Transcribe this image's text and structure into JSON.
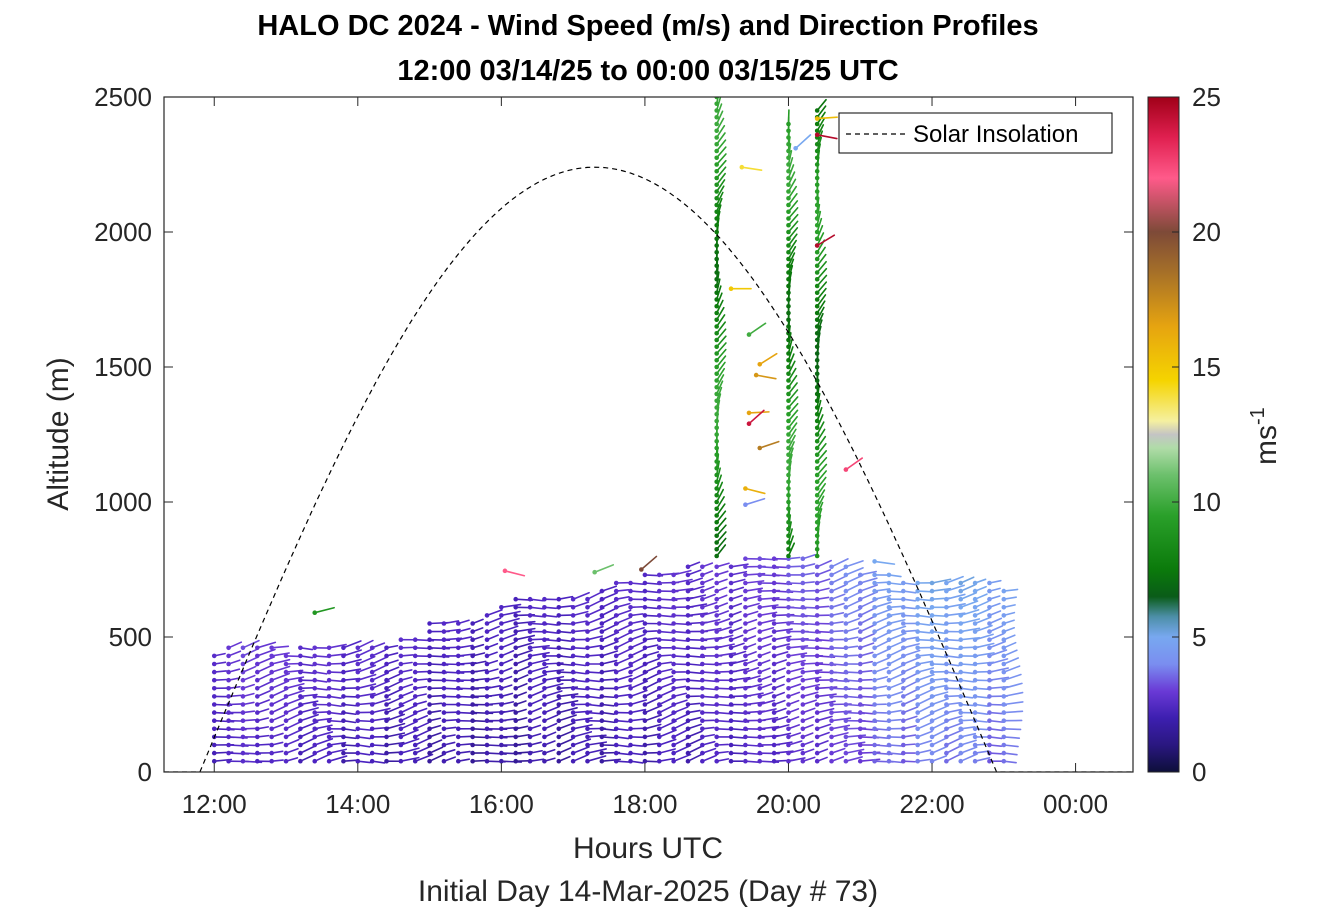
{
  "chart_data": {
    "type": "wind-barb-profile",
    "title": "HALO DC 2024 - Wind Speed (m/s) and Direction Profiles",
    "subtitle": "12:00 03/14/25 to 00:00 03/15/25  UTC",
    "xlabel": "Hours UTC",
    "xlabel2": "Initial Day 14-Mar-2025 (Day # 73)",
    "ylabel": "Altitude (m)",
    "xlim": [
      11.3,
      24.8
    ],
    "ylim": [
      0,
      2500
    ],
    "x_ticks": [
      12,
      14,
      16,
      18,
      20,
      22,
      24
    ],
    "x_tick_labels": [
      "12:00",
      "14:00",
      "16:00",
      "18:00",
      "20:00",
      "22:00",
      "00:00"
    ],
    "y_ticks": [
      0,
      500,
      1000,
      1500,
      2000,
      2500
    ],
    "y_tick_labels": [
      "0",
      "500",
      "1000",
      "1500",
      "2000",
      "2500"
    ],
    "colorbar": {
      "label": "ms",
      "label_exponent": "-1",
      "range": [
        0,
        25
      ],
      "ticks": [
        0,
        5,
        10,
        15,
        20,
        25
      ],
      "tick_labels": [
        "0",
        "5",
        "10",
        "15",
        "20",
        "25"
      ]
    },
    "legend": {
      "entries": [
        "Solar Insolation"
      ],
      "position": "top-right"
    },
    "solar_insolation_curve": {
      "sunrise_hour": 11.8,
      "sunset_hour": 22.9,
      "peak_hour": 17.3,
      "peak_altitude": 2240,
      "line_style": "dashed"
    },
    "profile_times_hours": [
      12.0,
      12.2,
      12.4,
      12.6,
      12.8,
      13.0,
      13.2,
      13.4,
      13.6,
      13.8,
      14.0,
      14.2,
      14.4,
      14.6,
      14.8,
      15.0,
      15.2,
      15.4,
      15.6,
      15.8,
      16.0,
      16.2,
      16.4,
      16.6,
      16.8,
      17.0,
      17.2,
      17.4,
      17.6,
      17.8,
      18.0,
      18.2,
      18.4,
      18.6,
      18.8,
      19.0,
      19.2,
      19.4,
      19.6,
      19.8,
      20.0,
      20.2,
      20.4,
      20.6,
      20.8,
      21.0,
      21.2,
      21.4,
      21.6,
      21.8,
      22.0,
      22.2,
      22.4,
      22.6,
      22.8,
      23.0
    ],
    "boundary_layer_top_m": [
      450,
      460,
      460,
      460,
      460,
      440,
      460,
      470,
      470,
      470,
      470,
      470,
      480,
      490,
      490,
      550,
      550,
      560,
      570,
      590,
      610,
      640,
      650,
      650,
      660,
      650,
      650,
      690,
      700,
      720,
      730,
      740,
      750,
      760,
      780,
      780,
      780,
      790,
      790,
      790,
      790,
      790,
      780,
      770,
      760,
      750,
      740,
      730,
      720,
      710,
      700,
      700,
      700,
      700,
      700,
      690
    ],
    "boundary_layer_speed_ms": [
      2.5,
      2.5,
      2.8,
      2.8,
      2.6,
      2.6,
      2.5,
      2.4,
      2.4,
      2.3,
      2.3,
      2.2,
      2.2,
      2.2,
      2.1,
      2.1,
      2.0,
      2.0,
      2.0,
      1.9,
      1.9,
      2.0,
      2.0,
      2.0,
      2.1,
      2.1,
      2.1,
      2.2,
      2.2,
      2.2,
      2.3,
      2.3,
      2.4,
      2.4,
      2.5,
      2.6,
      2.6,
      2.7,
      2.8,
      2.9,
      3.0,
      3.1,
      3.3,
      3.4,
      3.6,
      3.8,
      4.0,
      4.2,
      4.3,
      4.4,
      4.5,
      4.6,
      4.5,
      4.4,
      4.3,
      4.2
    ],
    "upper_profiles": [
      {
        "time_hours": 19.0,
        "bottom_m": 800,
        "top_m": 2500,
        "speed_ms": 8.5
      },
      {
        "time_hours": 20.0,
        "bottom_m": 800,
        "top_m": 2400,
        "speed_ms": 8.5
      },
      {
        "time_hours": 20.4,
        "bottom_m": 800,
        "top_m": 2450,
        "speed_ms": 8.2
      }
    ],
    "scattered_barbs": [
      {
        "time_hours": 13.4,
        "altitude_m": 590,
        "speed_ms": 9.0
      },
      {
        "time_hours": 16.05,
        "altitude_m": 745,
        "speed_ms": 22.0
      },
      {
        "time_hours": 17.3,
        "altitude_m": 740,
        "speed_ms": 11.0
      },
      {
        "time_hours": 17.95,
        "altitude_m": 750,
        "speed_ms": 20.0
      },
      {
        "time_hours": 19.2,
        "altitude_m": 1790,
        "speed_ms": 15.0
      },
      {
        "time_hours": 19.35,
        "altitude_m": 2240,
        "speed_ms": 14.0
      },
      {
        "time_hours": 19.45,
        "altitude_m": 1620,
        "speed_ms": 10.0
      },
      {
        "time_hours": 19.6,
        "altitude_m": 1510,
        "speed_ms": 16.5
      },
      {
        "time_hours": 19.55,
        "altitude_m": 1470,
        "speed_ms": 17.0
      },
      {
        "time_hours": 19.45,
        "altitude_m": 1330,
        "speed_ms": 16.5
      },
      {
        "time_hours": 19.45,
        "altitude_m": 1290,
        "speed_ms": 24.0
      },
      {
        "time_hours": 19.6,
        "altitude_m": 1200,
        "speed_ms": 18.0
      },
      {
        "time_hours": 19.4,
        "altitude_m": 1050,
        "speed_ms": 16.0
      },
      {
        "time_hours": 19.4,
        "altitude_m": 990,
        "speed_ms": 4.0
      },
      {
        "time_hours": 20.1,
        "altitude_m": 2310,
        "speed_ms": 5.0
      },
      {
        "time_hours": 20.4,
        "altitude_m": 2420,
        "speed_ms": 15.5
      },
      {
        "time_hours": 20.4,
        "altitude_m": 2360,
        "speed_ms": 24.5
      },
      {
        "time_hours": 20.4,
        "altitude_m": 1950,
        "speed_ms": 24.5
      },
      {
        "time_hours": 20.8,
        "altitude_m": 1120,
        "speed_ms": 22.5
      },
      {
        "time_hours": 21.2,
        "altitude_m": 780,
        "speed_ms": 5.0
      }
    ]
  }
}
